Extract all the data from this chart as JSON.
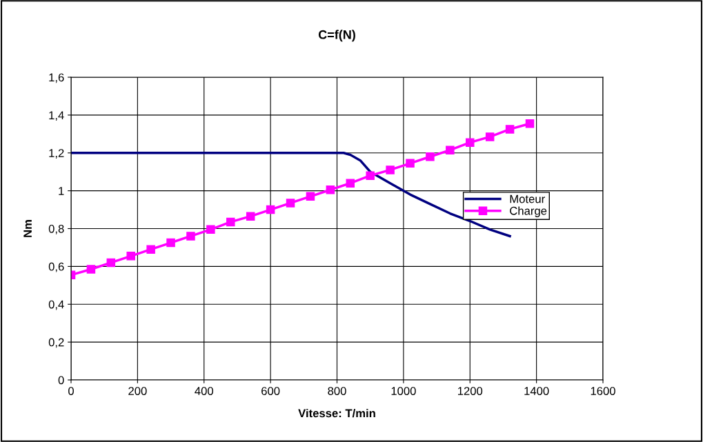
{
  "chart_data": {
    "type": "line",
    "title": "C=f(N)",
    "xlabel": "Vitesse: T/min",
    "ylabel": "Nm",
    "xlim": [
      0,
      1600
    ],
    "xticks": [
      0,
      200,
      400,
      600,
      800,
      1000,
      1200,
      1400,
      1600
    ],
    "ylim": [
      0,
      1.6
    ],
    "yticks": [
      0,
      {
        "value": 0.2,
        "label": "0,2"
      },
      {
        "value": 0.4,
        "label": "0,4"
      },
      {
        "value": 0.6,
        "label": "0,6"
      },
      {
        "value": 0.8,
        "label": "0,8"
      },
      1,
      {
        "value": 1.2,
        "label": "1,2"
      },
      {
        "value": 1.4,
        "label": "1,4"
      },
      {
        "value": 1.6,
        "label": "1,6"
      }
    ],
    "grid": true,
    "legend": "right",
    "series": [
      {
        "name": "Moteur",
        "color": "#000080",
        "marker": "none",
        "x": [
          0,
          820,
          840,
          870,
          900,
          960,
          1020,
          1080,
          1140,
          1200,
          1260,
          1320
        ],
        "values": [
          1.2,
          1.2,
          1.19,
          1.16,
          1.1,
          1.04,
          0.98,
          0.93,
          0.88,
          0.84,
          0.795,
          0.76
        ]
      },
      {
        "name": "Charge",
        "color": "#ff00ff",
        "marker": "square",
        "x": [
          0,
          60,
          120,
          180,
          240,
          300,
          360,
          420,
          480,
          540,
          600,
          660,
          720,
          780,
          840,
          900,
          960,
          1020,
          1080,
          1140,
          1200,
          1260,
          1320,
          1380
        ],
        "values": [
          0.555,
          0.585,
          0.62,
          0.655,
          0.69,
          0.725,
          0.76,
          0.795,
          0.835,
          0.865,
          0.9,
          0.935,
          0.97,
          1.005,
          1.04,
          1.08,
          1.11,
          1.145,
          1.18,
          1.215,
          1.255,
          1.285,
          1.325,
          1.355
        ]
      }
    ]
  }
}
